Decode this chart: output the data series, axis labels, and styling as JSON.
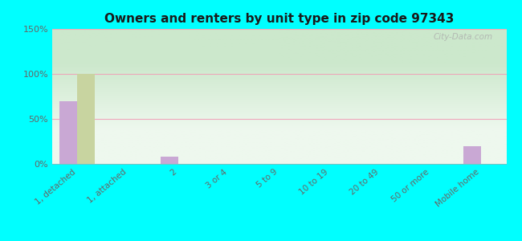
{
  "title": "Owners and renters by unit type in zip code 97343",
  "categories": [
    "1, detached",
    "1, attached",
    "2",
    "3 or 4",
    "5 to 9",
    "10 to 19",
    "20 to 49",
    "50 or more",
    "Mobile home"
  ],
  "owner_values": [
    70,
    0,
    8,
    0,
    0,
    0,
    0,
    0,
    20
  ],
  "renter_values": [
    100,
    0,
    0,
    0,
    0,
    0,
    0,
    0,
    0
  ],
  "owner_color": "#c9a8d4",
  "renter_color": "#c8d4a0",
  "background_outer": "#00ffff",
  "background_plot_top": "#cce8cc",
  "background_plot_bottom": "#eef8ee",
  "ylim": [
    0,
    150
  ],
  "yticks": [
    0,
    50,
    100,
    150
  ],
  "ytick_labels": [
    "0%",
    "50%",
    "100%",
    "150%"
  ],
  "grid_color": "#f0a0b8",
  "watermark": "City-Data.com",
  "bar_width": 0.35
}
